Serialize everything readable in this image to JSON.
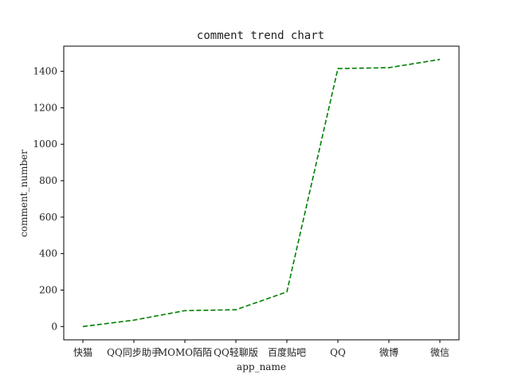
{
  "chart_data": {
    "type": "line",
    "title": "comment trend chart",
    "xlabel": "app_name",
    "ylabel": "comment_number",
    "categories": [
      "快猫",
      "QQ同步助手",
      "MOMO陌陌",
      "QQ轻聊版",
      "百度贴吧",
      "QQ",
      "微博",
      "微信"
    ],
    "series": [
      {
        "values": [
          0,
          35,
          87,
          92,
          190,
          1415,
          1420,
          1465
        ]
      }
    ],
    "yticks": [
      0,
      200,
      400,
      600,
      800,
      1000,
      1200,
      1400
    ],
    "ylim": [
      -73,
      1538
    ],
    "grid": false,
    "line_style": "dashed",
    "colors": {
      "line": "#008000",
      "axis": "#000000",
      "text": "#222222"
    }
  }
}
